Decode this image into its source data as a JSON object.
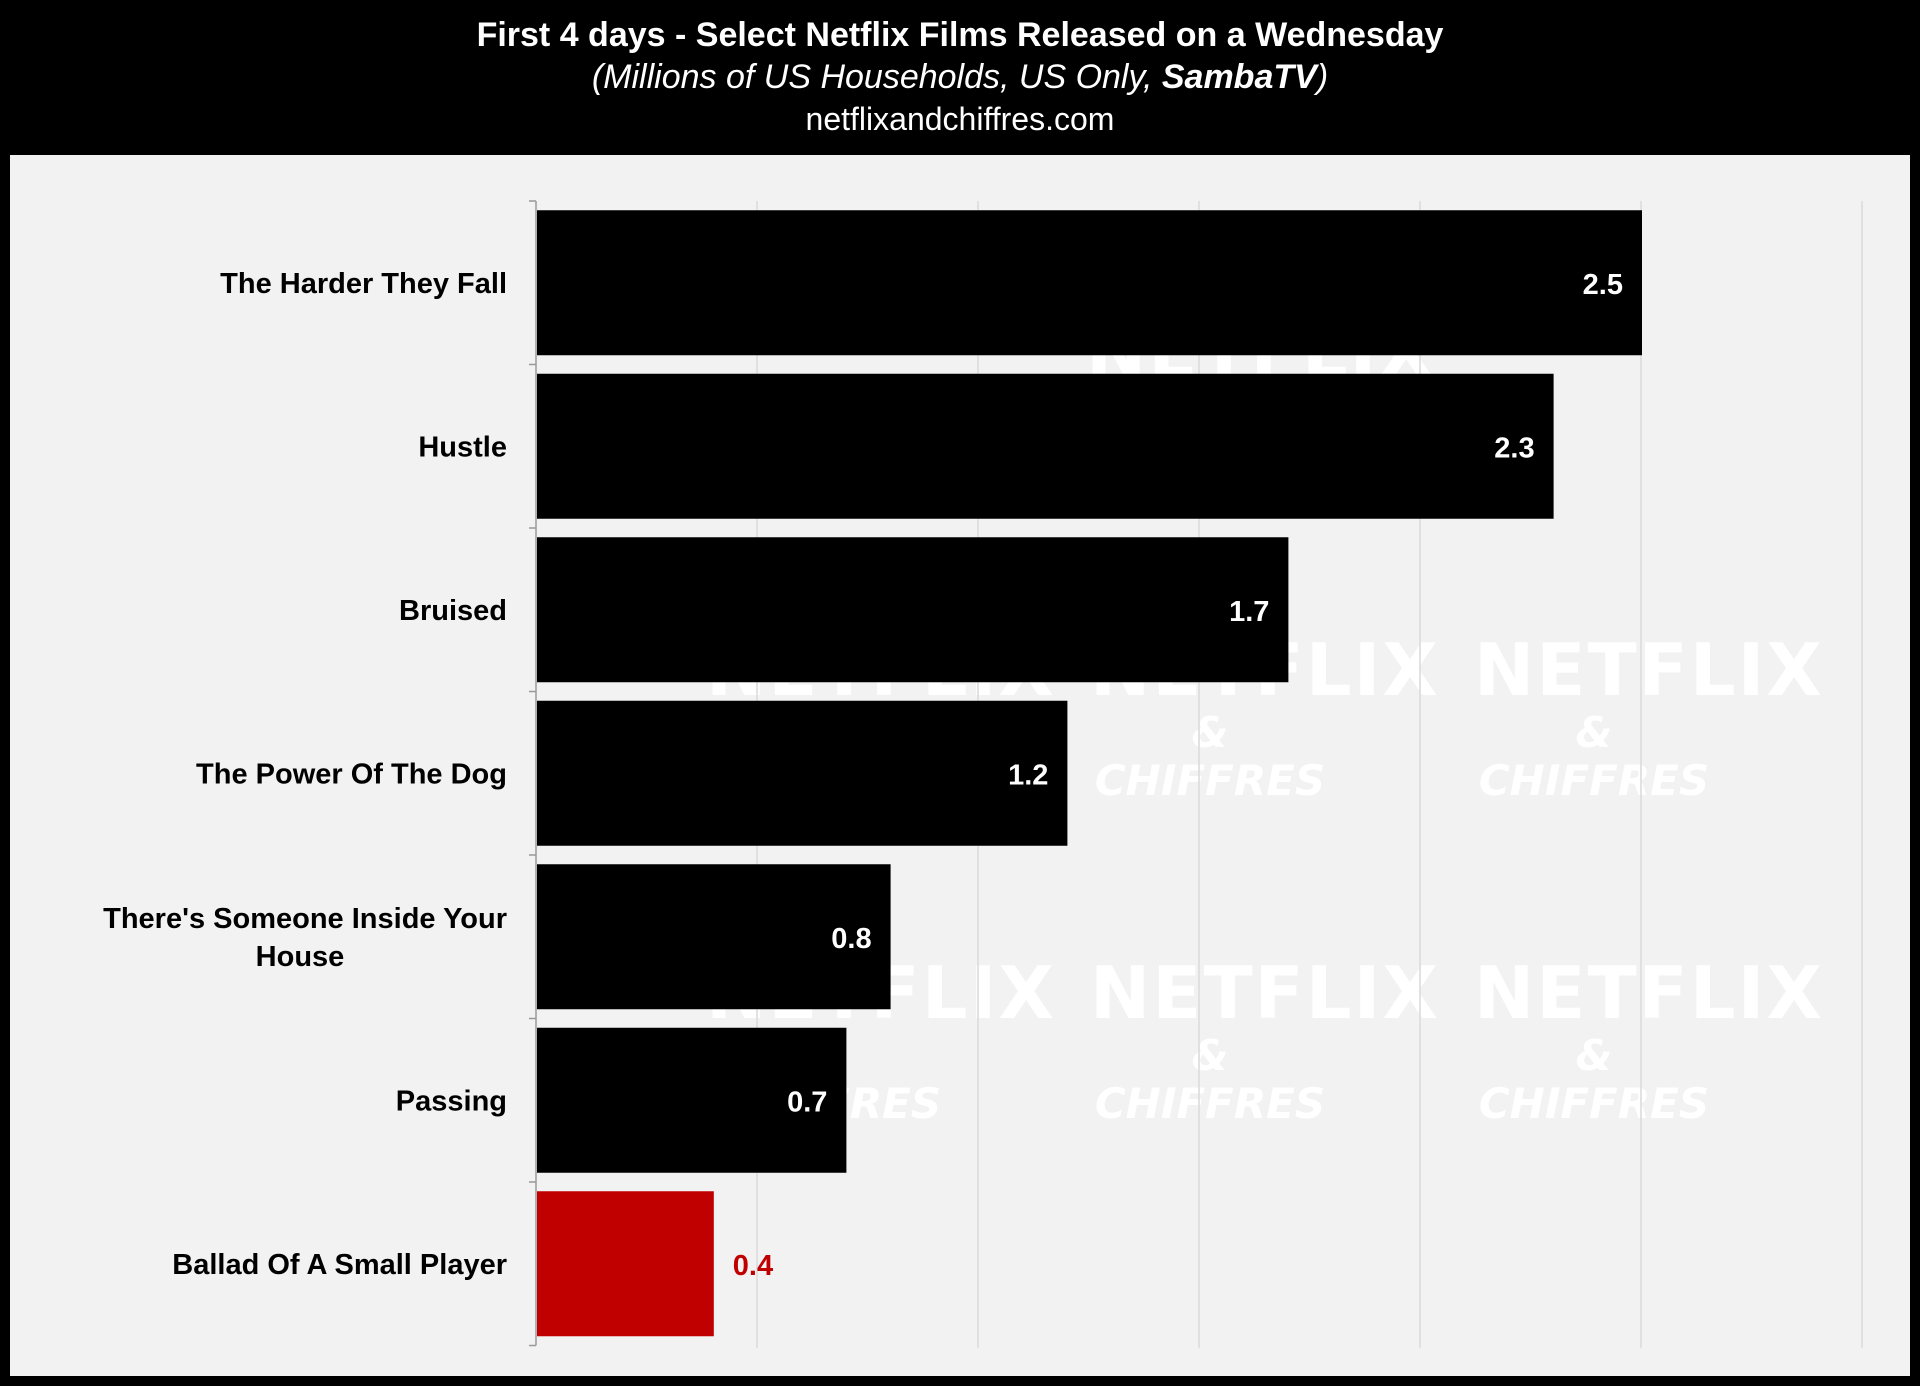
{
  "header": {
    "title": "First 4 days - Select Netflix Films Released on a Wednesday",
    "subtitle_pre": "(Millions of US Households, US Only, ",
    "subtitle_bold": "SambaTV",
    "subtitle_post": ")",
    "source": "netflixandchiffres.com"
  },
  "watermark": {
    "line1": "NETFLIX",
    "line2": "& CHIFFRES"
  },
  "colors": {
    "background": "#000000",
    "plot_background": "#f2f2f2",
    "bar_default": "#000000",
    "bar_highlight": "#c00000",
    "label_on_bar": "#ffffff",
    "label_highlight": "#c00000",
    "gridline": "#d9d9d9"
  },
  "chart_data": {
    "type": "bar",
    "orientation": "horizontal",
    "categories": [
      "The Harder They Fall",
      "Hustle",
      "Bruised",
      "The Power Of The Dog",
      "There's Someone Inside Your House",
      "Passing",
      "Ballad Of A Small Player"
    ],
    "values": [
      2.5,
      2.3,
      1.7,
      1.2,
      0.8,
      0.7,
      0.4
    ],
    "value_labels": [
      "2.5",
      "2.3",
      "1.7",
      "1.2",
      "0.8",
      "0.7",
      "0.4"
    ],
    "highlight": [
      false,
      false,
      false,
      false,
      false,
      false,
      true
    ],
    "xlim": [
      0,
      3.0
    ],
    "gridlines": [
      0.5,
      1.0,
      1.5,
      2.0,
      2.5,
      3.0
    ],
    "grid": true,
    "legend": "none",
    "title": "First 4 days - Select Netflix Films Released on a Wednesday",
    "xlabel": "",
    "ylabel": ""
  }
}
